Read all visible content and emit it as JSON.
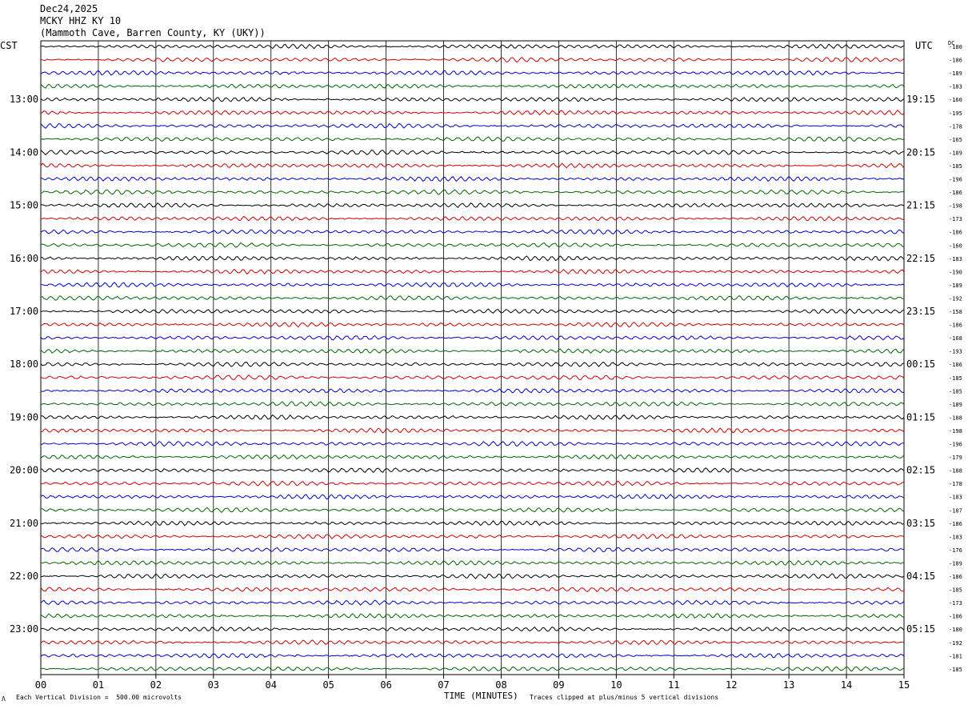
{
  "header": {
    "date": "Dec24,2025",
    "station": "MCKY HHZ KY 10",
    "location": "(Mammoth Cave, Barren County, KY (UKY))"
  },
  "left_zone": "CST",
  "right_zone": "UTC",
  "dc_label": "DC",
  "footer": {
    "scale_note": "Each Vertical Division =  500.00 microvolts",
    "clip_note": "Traces clipped at plus/minus 5 vertical divisions",
    "corner_mark": "Λ"
  },
  "chart_data": {
    "type": "line",
    "title": "",
    "xlabel": "TIME (MINUTES)",
    "ylabel": "",
    "xlim": [
      0,
      15
    ],
    "x_ticks": [
      "00",
      "01",
      "02",
      "03",
      "04",
      "05",
      "06",
      "07",
      "08",
      "09",
      "10",
      "11",
      "12",
      "13",
      "14",
      "15"
    ],
    "rows": 48,
    "row_colors": [
      "#000000",
      "#cc0000",
      "#0000cc",
      "#006600"
    ],
    "left_hour_labels": [
      "13:00",
      "14:00",
      "15:00",
      "16:00",
      "17:00",
      "18:00",
      "19:00",
      "20:00",
      "21:00",
      "22:00",
      "23:00"
    ],
    "right_hour_labels": [
      "19:15",
      "20:15",
      "21:15",
      "22:15",
      "23:15",
      "00:15",
      "01:15",
      "02:15",
      "03:15",
      "04:15",
      "05:15"
    ],
    "dc_values": [
      "-180",
      "-186",
      "-189",
      "-183",
      "-160",
      "-195",
      "-178",
      "-165",
      "-189",
      "-185",
      "-196",
      "-186",
      "-198",
      "-173",
      "-186",
      "-160",
      "-183",
      "-190",
      "-189",
      "-192",
      "-158",
      "-186",
      "-168",
      "-193",
      "-186",
      "-185",
      "-185",
      "-189",
      "-188",
      "-198",
      "-196",
      "-179",
      "-188",
      "-178",
      "-183",
      "-187",
      "-186",
      "-183",
      "-176",
      "-189",
      "-186",
      "-185",
      "-173",
      "-186",
      "-180",
      "-192",
      "-181",
      "-185"
    ]
  }
}
